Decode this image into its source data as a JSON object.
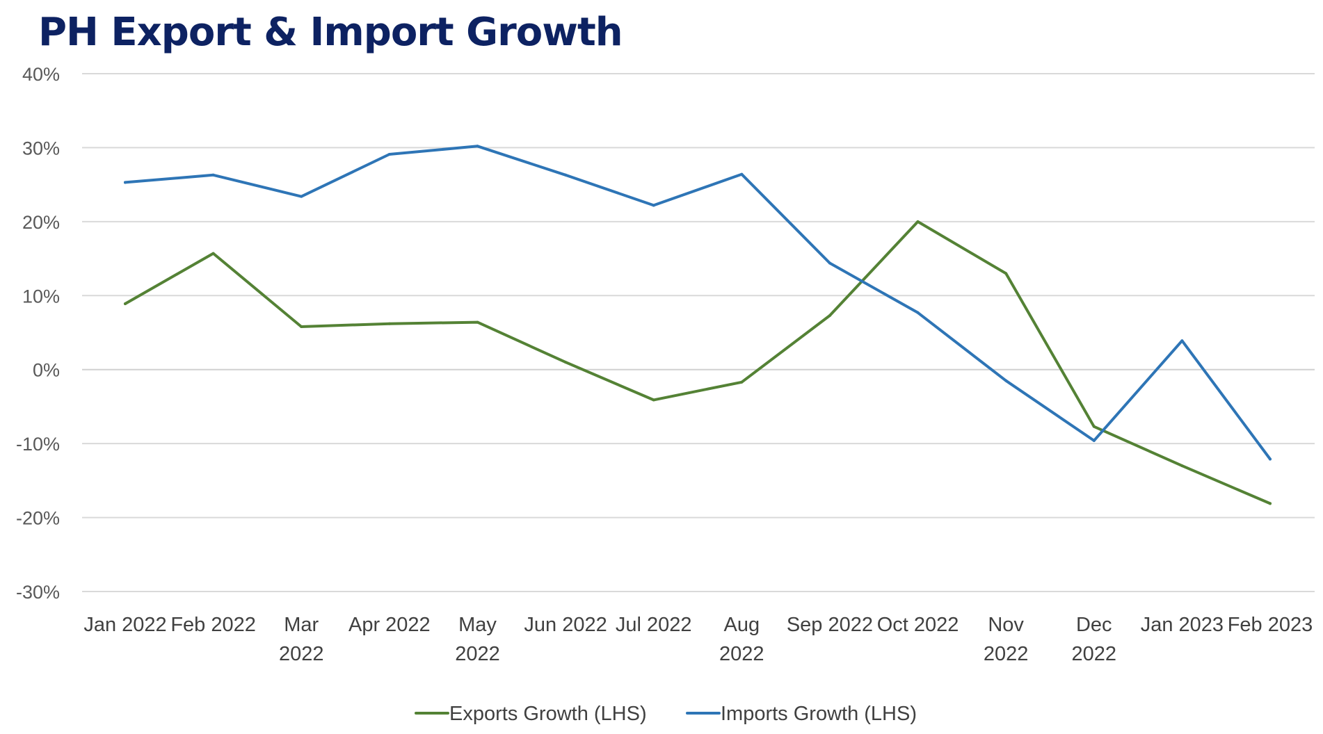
{
  "chart_data": {
    "type": "line",
    "title": "PH Export & Import Growth",
    "xlabel": "",
    "ylabel": "",
    "categories": [
      "Jan 2022",
      "Feb 2022",
      "Mar 2022",
      "Apr 2022",
      "May 2022",
      "Jun 2022",
      "Jul 2022",
      "Aug 2022",
      "Sep 2022",
      "Oct 2022",
      "Nov 2022",
      "Dec 2022",
      "Jan 2023",
      "Feb 2023"
    ],
    "category_label_lines": [
      [
        "Jan 2022"
      ],
      [
        "Feb 2022"
      ],
      [
        "Mar",
        "2022"
      ],
      [
        "Apr 2022"
      ],
      [
        "May",
        "2022"
      ],
      [
        "Jun 2022"
      ],
      [
        "Jul 2022"
      ],
      [
        "Aug",
        "2022"
      ],
      [
        "Sep 2022"
      ],
      [
        "Oct 2022"
      ],
      [
        "Nov",
        "2022"
      ],
      [
        "Dec",
        "2022"
      ],
      [
        "Jan 2023"
      ],
      [
        "Feb 2023"
      ]
    ],
    "y_ticks": [
      "40%",
      "30%",
      "20%",
      "10%",
      "0%",
      "-10%",
      "-20%",
      "-30%"
    ],
    "y_tick_values": [
      40,
      30,
      20,
      10,
      0,
      -10,
      -20,
      -30
    ],
    "ylim": [
      -30,
      40
    ],
    "y_unit": "%",
    "grid": true,
    "legend_position": "bottom",
    "series": [
      {
        "name": "Exports Growth (LHS)",
        "color": "#548235",
        "values": [
          8.9,
          15.7,
          5.8,
          6.2,
          6.4,
          1.0,
          -4.1,
          -1.7,
          7.3,
          20.0,
          13.0,
          -7.7,
          -13.0,
          -18.1
        ]
      },
      {
        "name": "Imports Growth (LHS)",
        "color": "#2e75b6",
        "values": [
          25.3,
          26.3,
          23.4,
          29.1,
          30.2,
          26.3,
          22.2,
          26.4,
          14.4,
          7.7,
          -1.5,
          -9.6,
          3.9,
          -12.1
        ]
      }
    ]
  }
}
